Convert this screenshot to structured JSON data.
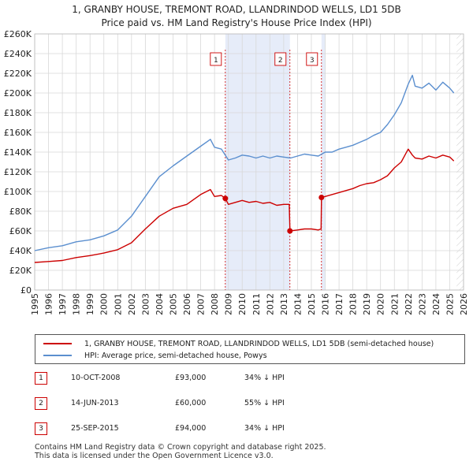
{
  "title_line1": "1, GRANBY HOUSE, TREMONT ROAD, LLANDRINDOD WELLS, LD1 5DB",
  "title_line2": "Price paid vs. HM Land Registry's House Price Index (HPI)",
  "colors": {
    "property": "#cc0000",
    "hpi": "#5b8fcf",
    "shade": "#e6ecf9",
    "grid": "#d8d8d8"
  },
  "legend": {
    "property_label": "1, GRANBY HOUSE, TREMONT ROAD, LLANDRINDOD WELLS, LD1 5DB (semi-detached house)",
    "hpi_label": "HPI: Average price, semi-detached house, Powys"
  },
  "transactions": [
    {
      "num": "1",
      "date": "10-OCT-2008",
      "price": "£93,000",
      "hpi": "34% ↓ HPI"
    },
    {
      "num": "2",
      "date": "14-JUN-2013",
      "price": "£60,000",
      "hpi": "55% ↓ HPI"
    },
    {
      "num": "3",
      "date": "25-SEP-2015",
      "price": "£94,000",
      "hpi": "34% ↓ HPI"
    }
  ],
  "footer_line1": "Contains HM Land Registry data © Crown copyright and database right 2025.",
  "footer_line2": "This data is licensed under the Open Government Licence v3.0.",
  "chart_data": {
    "type": "line",
    "title": "1, GRANBY HOUSE, TREMONT ROAD, LLANDRINDOD WELLS, LD1 5DB",
    "subtitle": "Price paid vs. HM Land Registry's House Price Index (HPI)",
    "xlabel": "",
    "ylabel": "",
    "xlim": [
      1995,
      2026
    ],
    "ylim": [
      0,
      260000
    ],
    "x_ticks": [
      1995,
      1996,
      1997,
      1998,
      1999,
      2000,
      2001,
      2002,
      2003,
      2004,
      2005,
      2006,
      2007,
      2008,
      2009,
      2010,
      2011,
      2012,
      2013,
      2014,
      2015,
      2016,
      2017,
      2018,
      2019,
      2020,
      2021,
      2022,
      2023,
      2024,
      2025,
      2026
    ],
    "y_ticks": [
      0,
      20000,
      40000,
      60000,
      80000,
      100000,
      120000,
      140000,
      160000,
      180000,
      200000,
      220000,
      240000,
      260000
    ],
    "y_tick_labels": [
      "£0",
      "£20K",
      "£40K",
      "£60K",
      "£80K",
      "£100K",
      "£120K",
      "£140K",
      "£160K",
      "£180K",
      "£200K",
      "£220K",
      "£240K",
      "£260K"
    ],
    "grid": true,
    "shaded_ranges": [
      [
        2008.78,
        2013.45
      ],
      [
        2015.73,
        2016.0
      ]
    ],
    "projection_start": 2025.5,
    "sales": [
      {
        "label": "1",
        "x": 2008.78,
        "y": 93000
      },
      {
        "label": "2",
        "x": 2013.45,
        "y": 60000
      },
      {
        "label": "3",
        "x": 2015.73,
        "y": 94000
      }
    ],
    "series": [
      {
        "name": "1, GRANBY HOUSE, TREMONT ROAD, LLANDRINDOD WELLS, LD1 5DB (semi-detached house)",
        "x": [
          1995,
          1996,
          1997,
          1998,
          1999,
          2000,
          2001,
          2002,
          2003,
          2004,
          2005,
          2006,
          2007,
          2007.7,
          2008,
          2008.5,
          2008.78,
          2009,
          2009.5,
          2010,
          2010.5,
          2011,
          2011.5,
          2012,
          2012.5,
          2013,
          2013.4,
          2013.45,
          2014,
          2014.5,
          2015,
          2015.5,
          2015.7,
          2015.73,
          2016,
          2016.5,
          2017,
          2017.5,
          2018,
          2018.5,
          2019,
          2019.5,
          2020,
          2020.5,
          2021,
          2021.5,
          2022,
          2022.3,
          2022.5,
          2023,
          2023.5,
          2024,
          2024.5,
          2025,
          2025.3
        ],
        "values": [
          28000,
          29000,
          30000,
          33000,
          35000,
          37500,
          41000,
          48000,
          62000,
          75000,
          83000,
          87000,
          97000,
          102000,
          95000,
          96000,
          93000,
          87000,
          89000,
          91000,
          89000,
          90000,
          88000,
          89000,
          86000,
          87000,
          87000,
          60000,
          61000,
          62000,
          62000,
          61000,
          62000,
          94000,
          95000,
          97000,
          99000,
          101000,
          103000,
          106000,
          108000,
          109000,
          112000,
          116000,
          124000,
          130000,
          143000,
          137000,
          134000,
          133000,
          136000,
          134000,
          137000,
          135000,
          131000
        ]
      },
      {
        "name": "HPI: Average price, semi-detached house, Powys",
        "x": [
          1995,
          1996,
          1997,
          1998,
          1999,
          2000,
          2001,
          2002,
          2003,
          2004,
          2005,
          2006,
          2007,
          2007.7,
          2008,
          2008.5,
          2009,
          2009.5,
          2010,
          2010.5,
          2011,
          2011.5,
          2012,
          2012.5,
          2013,
          2013.5,
          2014,
          2014.5,
          2015,
          2015.5,
          2016,
          2016.5,
          2017,
          2017.5,
          2018,
          2018.5,
          2019,
          2019.5,
          2020,
          2020.5,
          2021,
          2021.5,
          2022,
          2022.3,
          2022.5,
          2023,
          2023.5,
          2024,
          2024.5,
          2025,
          2025.3
        ],
        "values": [
          40000,
          43000,
          45000,
          49000,
          51000,
          55000,
          61000,
          75000,
          95000,
          115000,
          126000,
          136000,
          146000,
          153000,
          145000,
          143000,
          132000,
          134000,
          137000,
          136000,
          134000,
          136000,
          134000,
          136000,
          135000,
          134000,
          136000,
          138000,
          137000,
          136000,
          140000,
          140000,
          143000,
          145000,
          147000,
          150000,
          153000,
          157000,
          160000,
          168000,
          178000,
          190000,
          209000,
          218000,
          207000,
          205000,
          210000,
          203000,
          211000,
          205000,
          200000
        ]
      }
    ]
  }
}
